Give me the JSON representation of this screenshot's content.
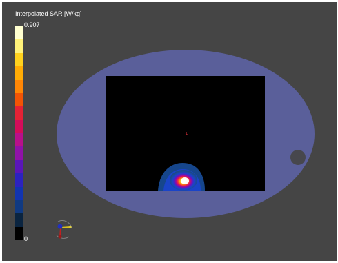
{
  "legend": {
    "title": "Interpolated SAR [W/kg]",
    "max_label": "0.907",
    "min_label": "0",
    "colors": [
      "#ffffd0",
      "#fff27a",
      "#ffd21e",
      "#ffac05",
      "#ff8605",
      "#f25405",
      "#e42235",
      "#d40c5a",
      "#b8108a",
      "#9012a8",
      "#5a16b8",
      "#2c22c0",
      "#1234b0",
      "#103a82",
      "#0a2440",
      "#000000"
    ]
  },
  "scene": {
    "phantom_color": "#5a5f9a",
    "slice_color": "#000000",
    "hotspot_colors": [
      "#ffffff",
      "#ffff40",
      "#ff8000",
      "#e0105a",
      "#6010c0",
      "#1a44c8",
      "#16468c"
    ]
  },
  "orientation_widget": {
    "icon": "axes-orientation-icon"
  }
}
